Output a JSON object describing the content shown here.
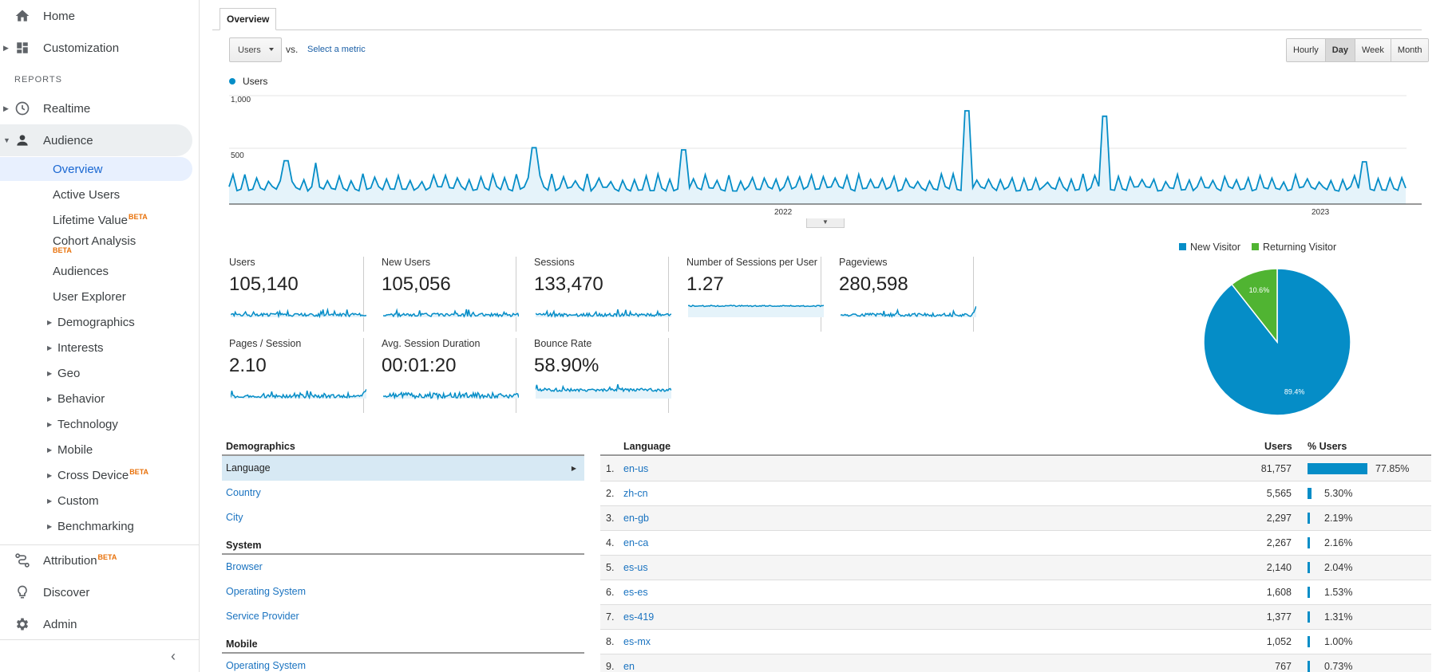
{
  "sidebar": {
    "home": "Home",
    "customization": "Customization",
    "reports_title": "REPORTS",
    "realtime": "Realtime",
    "audience": "Audience",
    "audience_items": [
      {
        "label": "Overview"
      },
      {
        "label": "Active Users"
      },
      {
        "label": "Lifetime Value",
        "beta": "BETA"
      },
      {
        "label": "Cohort Analysis",
        "beta": "BETA"
      },
      {
        "label": "Audiences"
      },
      {
        "label": "User Explorer"
      },
      {
        "label": "Demographics"
      },
      {
        "label": "Interests"
      },
      {
        "label": "Geo"
      },
      {
        "label": "Behavior"
      },
      {
        "label": "Technology"
      },
      {
        "label": "Mobile"
      },
      {
        "label": "Cross Device",
        "beta": "BETA"
      },
      {
        "label": "Custom"
      },
      {
        "label": "Benchmarking"
      }
    ],
    "attribution": "Attribution",
    "attribution_beta": "BETA",
    "discover": "Discover",
    "admin": "Admin"
  },
  "tabs": {
    "overview": "Overview"
  },
  "controls": {
    "metric": "Users",
    "vs": "vs.",
    "select_metric": "Select a metric",
    "time": [
      "Hourly",
      "Day",
      "Week",
      "Month"
    ],
    "active_time": "Day"
  },
  "chart_data": {
    "type": "line",
    "series": [
      {
        "name": "Users"
      }
    ],
    "legend": "Users",
    "yticks": [
      "1,000",
      "500"
    ],
    "ylim": [
      0,
      1000
    ],
    "xticks": [
      "2022",
      "2023"
    ],
    "baseline": 120,
    "peak_min": 200,
    "peak_max": 280,
    "spikes": [
      {
        "pos": 0.048,
        "value": 400
      },
      {
        "pos": 0.073,
        "value": 380
      },
      {
        "pos": 0.26,
        "value": 520
      },
      {
        "pos": 0.386,
        "value": 500
      },
      {
        "pos": 0.628,
        "value": 860
      },
      {
        "pos": 0.745,
        "value": 810
      },
      {
        "pos": 0.965,
        "value": 390
      }
    ],
    "color": "#058dc7"
  },
  "metrics": [
    {
      "name": "Users",
      "value": "105,140"
    },
    {
      "name": "New Users",
      "value": "105,056"
    },
    {
      "name": "Sessions",
      "value": "133,470"
    },
    {
      "name": "Number of Sessions per User",
      "value": "1.27"
    },
    {
      "name": "Pageviews",
      "value": "280,598"
    },
    {
      "name": "Pages / Session",
      "value": "2.10"
    },
    {
      "name": "Avg. Session Duration",
      "value": "00:01:20"
    },
    {
      "name": "Bounce Rate",
      "value": "58.90%"
    }
  ],
  "pie": {
    "type": "pie",
    "slices": [
      {
        "name": "New Visitor",
        "value": 89.4,
        "label": "89.4%",
        "color": "#058dc7"
      },
      {
        "name": "Returning Visitor",
        "value": 10.6,
        "label": "10.6%",
        "color": "#50b432"
      }
    ]
  },
  "demographics_nav": {
    "sections": [
      {
        "title": "Demographics",
        "items": [
          "Language",
          "Country",
          "City"
        ]
      },
      {
        "title": "System",
        "items": [
          "Browser",
          "Operating System",
          "Service Provider"
        ]
      },
      {
        "title": "Mobile",
        "items": [
          "Operating System"
        ]
      }
    ],
    "active": "Language"
  },
  "language_table": {
    "headers": {
      "language": "Language",
      "users": "Users",
      "pct": "% Users"
    },
    "rows": [
      {
        "idx": "1.",
        "lang": "en-us",
        "users": "81,757",
        "pct": "77.85%",
        "share": 77.85
      },
      {
        "idx": "2.",
        "lang": "zh-cn",
        "users": "5,565",
        "pct": "5.30%",
        "share": 5.3
      },
      {
        "idx": "3.",
        "lang": "en-gb",
        "users": "2,297",
        "pct": "2.19%",
        "share": 2.19
      },
      {
        "idx": "4.",
        "lang": "en-ca",
        "users": "2,267",
        "pct": "2.16%",
        "share": 2.16
      },
      {
        "idx": "5.",
        "lang": "es-us",
        "users": "2,140",
        "pct": "2.04%",
        "share": 2.04
      },
      {
        "idx": "6.",
        "lang": "es-es",
        "users": "1,608",
        "pct": "1.53%",
        "share": 1.53
      },
      {
        "idx": "7.",
        "lang": "es-419",
        "users": "1,377",
        "pct": "1.31%",
        "share": 1.31
      },
      {
        "idx": "8.",
        "lang": "es-mx",
        "users": "1,052",
        "pct": "1.00%",
        "share": 1.0
      },
      {
        "idx": "9.",
        "lang": "en",
        "users": "767",
        "pct": "0.73%",
        "share": 0.73
      }
    ]
  }
}
